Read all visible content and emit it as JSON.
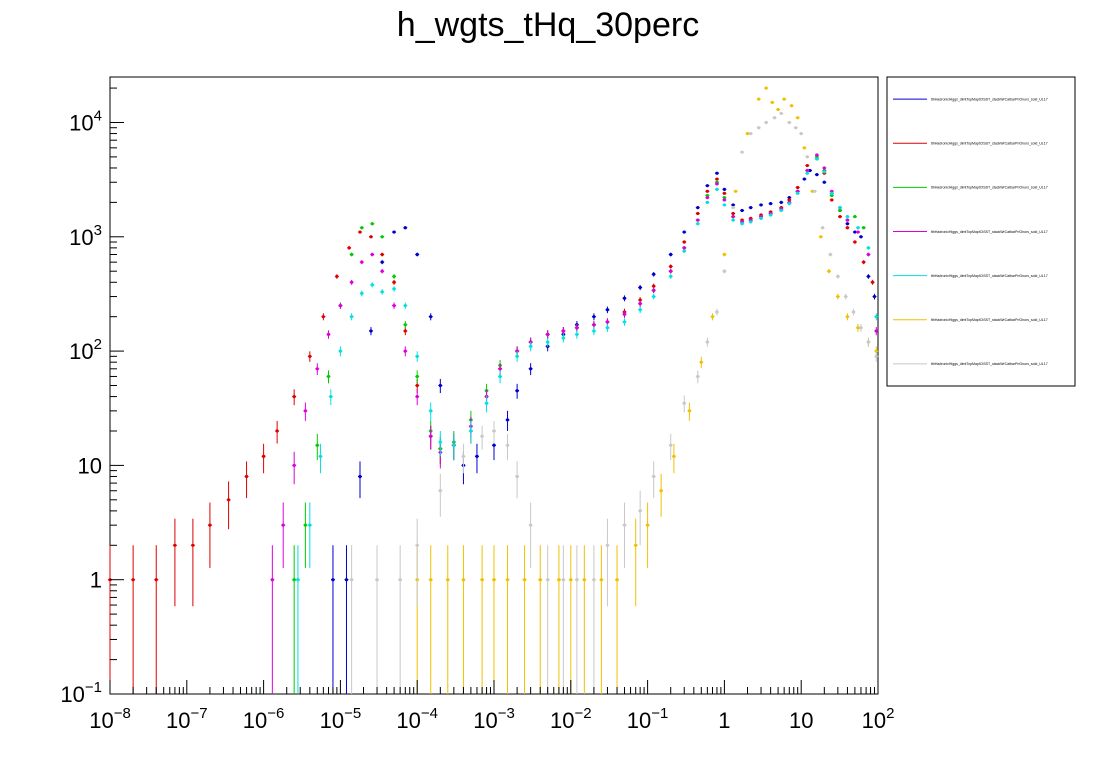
{
  "chart_data": {
    "type": "scatter",
    "title": "h_wgts_tHq_30perc",
    "xlabel": "",
    "ylabel": "",
    "xscale": "log",
    "yscale": "log",
    "xlim": [
      1e-08,
      100
    ],
    "ylim": [
      0.1,
      25000
    ],
    "grid": false,
    "legend_position": "right",
    "x_tick_labels": [
      {
        "value": 1e-08,
        "base": "10",
        "exp": "−8"
      },
      {
        "value": 1e-07,
        "base": "10",
        "exp": "−7"
      },
      {
        "value": 1e-06,
        "base": "10",
        "exp": "−6"
      },
      {
        "value": 1e-05,
        "base": "10",
        "exp": "−5"
      },
      {
        "value": 0.0001,
        "base": "10",
        "exp": "−4"
      },
      {
        "value": 0.001,
        "base": "10",
        "exp": "−3"
      },
      {
        "value": 0.01,
        "base": "10",
        "exp": "−2"
      },
      {
        "value": 0.1,
        "base": "10",
        "exp": "−1"
      },
      {
        "value": 1,
        "base": "1",
        "exp": ""
      },
      {
        "value": 10,
        "base": "10",
        "exp": ""
      },
      {
        "value": 100,
        "base": "10",
        "exp": "2"
      }
    ],
    "y_tick_labels": [
      {
        "value": 0.1,
        "base": "10",
        "exp": "−1"
      },
      {
        "value": 1,
        "base": "1",
        "exp": ""
      },
      {
        "value": 10,
        "base": "10",
        "exp": ""
      },
      {
        "value": 100,
        "base": "10",
        "exp": "2"
      },
      {
        "value": 1000,
        "base": "10",
        "exp": "3"
      },
      {
        "value": 10000,
        "base": "10",
        "exp": "4"
      }
    ],
    "series": [
      {
        "name": "tthHadronicHiggs_dimtTopMaptCtSST_stackWrCatbarPriOnurs_sold_UL17",
        "color": "#0000cc",
        "x": [
          8e-06,
          1.2e-05,
          1.8e-05,
          2.5e-05,
          3.5e-05,
          5e-05,
          7e-05,
          0.0001,
          0.00015,
          0.0002,
          0.0003,
          0.0004,
          0.0006,
          0.001,
          0.0015,
          0.002,
          0.003,
          0.005,
          0.008,
          0.012,
          0.02,
          0.03,
          0.05,
          0.08,
          0.12,
          0.2,
          0.3,
          0.45,
          0.6,
          0.8,
          1.0,
          1.3,
          1.7,
          2.2,
          3,
          4,
          5.5,
          7,
          9,
          11,
          13,
          16,
          20,
          25,
          32,
          40,
          50,
          60,
          75,
          90
        ],
        "y": [
          1,
          1,
          8,
          150,
          600,
          1100,
          1200,
          700,
          200,
          50,
          15,
          10,
          12,
          15,
          25,
          45,
          70,
          110,
          140,
          170,
          200,
          230,
          290,
          360,
          470,
          700,
          1100,
          1800,
          2800,
          3600,
          2600,
          1900,
          1700,
          1800,
          1900,
          1950,
          2000,
          2200,
          2500,
          3200,
          3800,
          3500,
          3000,
          2400,
          1700,
          1300,
          1100,
          1000,
          450,
          300
        ]
      },
      {
        "name": "tthHadronicHiggs_dimtTopMaptCtSST_stackWrCatbarPriOnurs_sold_UL17",
        "color": "#e00000",
        "x": [
          1e-08,
          2e-08,
          4e-08,
          7e-08,
          1.2e-07,
          2e-07,
          3.5e-07,
          6e-07,
          1e-06,
          1.5e-06,
          2.5e-06,
          4e-06,
          6e-06,
          9e-06,
          1.3e-05,
          1.8e-05,
          2.5e-05,
          3.5e-05,
          5e-05,
          7e-05,
          0.0001,
          0.00015,
          0.0002,
          0.0003,
          0.0005,
          0.0008,
          0.0012,
          0.002,
          0.003,
          0.005,
          0.008,
          0.012,
          0.02,
          0.03,
          0.05,
          0.08,
          0.12,
          0.2,
          0.3,
          0.45,
          0.6,
          0.8,
          1.0,
          1.3,
          1.7,
          2.2,
          3,
          4,
          5.5,
          7,
          9,
          12,
          16,
          20,
          25,
          32,
          40,
          50,
          65,
          85
        ],
        "y": [
          1,
          1,
          1,
          2,
          2,
          3,
          5,
          8,
          12,
          20,
          40,
          90,
          200,
          450,
          800,
          1100,
          1000,
          700,
          400,
          150,
          50,
          18,
          14,
          15,
          20,
          40,
          70,
          100,
          120,
          140,
          150,
          160,
          170,
          180,
          220,
          280,
          370,
          550,
          900,
          1600,
          2500,
          3200,
          2400,
          1600,
          1400,
          1450,
          1550,
          1650,
          1800,
          2100,
          2700,
          4200,
          4800,
          3600,
          2100,
          1500,
          1200,
          900,
          600,
          400
        ]
      },
      {
        "name": "tthHadronicHiggs_dimtTopMaptCtSST_stackWrCatbarPriOnurs_sold_UL17",
        "color": "#00cc00",
        "x": [
          2.5e-06,
          3.5e-06,
          5e-06,
          7e-06,
          1e-05,
          1.4e-05,
          1.9e-05,
          2.6e-05,
          3.5e-05,
          5e-05,
          7e-05,
          0.0001,
          0.00015,
          0.0002,
          0.0003,
          0.0005,
          0.0008,
          0.0012,
          0.002,
          0.003,
          0.005,
          0.008,
          0.012,
          0.02,
          0.03,
          0.05,
          0.08,
          0.12,
          0.2,
          0.3,
          0.45,
          0.6,
          0.8,
          1.0,
          1.3,
          1.7,
          2.2,
          3,
          4,
          5.5,
          7,
          9,
          12,
          16,
          20,
          25,
          32,
          40,
          50,
          65
        ],
        "y": [
          1,
          3,
          15,
          60,
          250,
          700,
          1200,
          1300,
          1000,
          450,
          170,
          60,
          20,
          14,
          16,
          25,
          45,
          75,
          100,
          120,
          140,
          150,
          160,
          170,
          180,
          210,
          260,
          340,
          500,
          800,
          1400,
          2300,
          3000,
          2200,
          1500,
          1350,
          1400,
          1500,
          1600,
          1750,
          2000,
          2500,
          3800,
          5000,
          3800,
          2300,
          1700,
          1400,
          1500,
          1200
        ]
      },
      {
        "name": "tthHadronicHiggs_dimtTopMaptCtSST_stackWrCatbarPriOnurs_sold_UL17",
        "color": "#dd00dd",
        "x": [
          1.3e-06,
          1.8e-06,
          2.5e-06,
          3.5e-06,
          5e-06,
          7e-06,
          1e-05,
          1.4e-05,
          1.9e-05,
          2.6e-05,
          3.5e-05,
          5e-05,
          7e-05,
          0.0001,
          0.00015,
          0.0002,
          0.0003,
          0.0005,
          0.0008,
          0.0012,
          0.002,
          0.003,
          0.005,
          0.008,
          0.012,
          0.02,
          0.03,
          0.05,
          0.08,
          0.12,
          0.2,
          0.3,
          0.45,
          0.6,
          0.8,
          1.0,
          1.3,
          1.7,
          2.2,
          3,
          4,
          5.5,
          7,
          9,
          12,
          16,
          20,
          25,
          32,
          40,
          55,
          75,
          95
        ],
        "y": [
          1,
          3,
          10,
          30,
          70,
          140,
          250,
          400,
          600,
          700,
          500,
          250,
          100,
          40,
          18,
          13,
          15,
          22,
          40,
          70,
          100,
          120,
          140,
          150,
          160,
          170,
          180,
          210,
          260,
          340,
          500,
          800,
          1400,
          2200,
          2900,
          2100,
          1500,
          1350,
          1400,
          1500,
          1600,
          1750,
          2000,
          2500,
          3800,
          5200,
          4000,
          2500,
          1800,
          1400,
          1100,
          700,
          150
        ]
      },
      {
        "name": "tthHadronicHiggs_dimtTopMaptCtSST_stackWrCatbarPriOnurs_sold_UL17",
        "color": "#00e0e0",
        "x": [
          2.8e-06,
          4e-06,
          5.5e-06,
          7.5e-06,
          1e-05,
          1.4e-05,
          1.9e-05,
          2.6e-05,
          3.5e-05,
          5e-05,
          7e-05,
          0.0001,
          0.00015,
          0.0002,
          0.0003,
          0.0005,
          0.0008,
          0.0012,
          0.002,
          0.003,
          0.005,
          0.008,
          0.012,
          0.02,
          0.03,
          0.05,
          0.08,
          0.12,
          0.2,
          0.3,
          0.45,
          0.6,
          0.8,
          1.0,
          1.3,
          1.7,
          2.2,
          3,
          4,
          5.5,
          7,
          9,
          12,
          16,
          20,
          25,
          32,
          40,
          55,
          75,
          95
        ],
        "y": [
          1,
          3,
          12,
          40,
          100,
          200,
          320,
          380,
          330,
          350,
          250,
          90,
          30,
          16,
          15,
          20,
          35,
          60,
          90,
          110,
          120,
          130,
          140,
          150,
          160,
          180,
          230,
          300,
          450,
          750,
          1300,
          2000,
          2600,
          1900,
          1400,
          1300,
          1350,
          1450,
          1550,
          1700,
          1950,
          2400,
          3600,
          4800,
          3700,
          2400,
          1800,
          1500,
          1200,
          800,
          200
        ]
      },
      {
        "name": "tthHadronicHiggs_dimtTopMaptCtSST_stackWrCatbarPriOnurs_sold_UL17",
        "color": "#f0c000",
        "x": [
          0.0001,
          0.00015,
          0.00025,
          0.0004,
          0.0007,
          0.001,
          0.0015,
          0.0025,
          0.004,
          0.007,
          0.01,
          0.015,
          0.025,
          0.04,
          0.07,
          0.1,
          0.15,
          0.22,
          0.35,
          0.5,
          0.7,
          1.0,
          1.4,
          2.0,
          2.8,
          3.5,
          4.2,
          5,
          6,
          7.5,
          9,
          11,
          14,
          18,
          23,
          30,
          40,
          55,
          75,
          95
        ],
        "y": [
          1,
          1,
          1,
          1,
          1,
          1,
          1,
          1,
          1,
          1,
          1,
          1,
          1,
          1,
          2,
          3,
          6,
          12,
          30,
          80,
          200,
          700,
          2500,
          8000,
          16000,
          20000,
          15000,
          13000,
          16000,
          14000,
          11000,
          6000,
          2500,
          1000,
          500,
          300,
          200,
          160,
          120,
          100
        ]
      },
      {
        "name": "tthHadronicHiggs_dimtTopMaptCtSST_stackWrCatbarPriOnurs_sold_UL17",
        "color": "#c8c8c8",
        "x": [
          1.4e-05,
          3e-05,
          6e-05,
          0.0001,
          0.0002,
          0.0004,
          0.0007,
          0.001,
          0.0015,
          0.002,
          0.003,
          0.005,
          0.008,
          0.012,
          0.02,
          0.03,
          0.05,
          0.08,
          0.12,
          0.2,
          0.3,
          0.45,
          0.6,
          0.8,
          1.0,
          1.3,
          1.7,
          2.2,
          2.8,
          3.5,
          4.5,
          5.5,
          7,
          8.5,
          10,
          12,
          15,
          19,
          24,
          30,
          38,
          48,
          60,
          75,
          95
        ],
        "y": [
          1,
          1,
          1,
          2,
          6,
          12,
          18,
          20,
          15,
          8,
          3,
          1,
          1,
          1,
          1,
          2,
          3,
          4,
          8,
          15,
          35,
          60,
          120,
          220,
          500,
          1800,
          5500,
          8000,
          9000,
          10000,
          11000,
          12000,
          10000,
          9000,
          8000,
          5000,
          2500,
          1200,
          700,
          450,
          300,
          220,
          160,
          120,
          90
        ]
      }
    ]
  }
}
